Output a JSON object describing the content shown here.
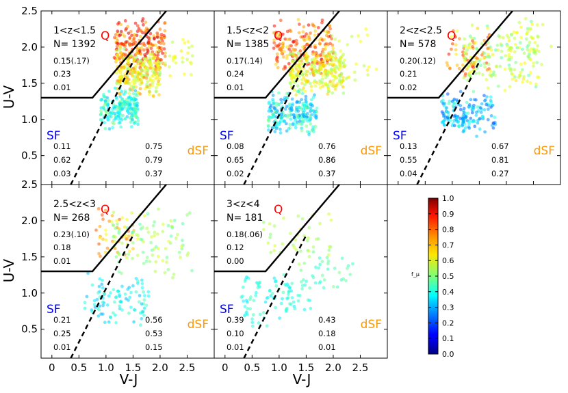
{
  "chart_data": {
    "type": "scatter",
    "xlabel": "V-J",
    "ylabel": "U-V",
    "xlim": [
      -0.2,
      3.0
    ],
    "ylim": [
      0.1,
      2.5
    ],
    "x_ticks": [
      "0",
      "0.5",
      "1.0",
      "1.5",
      "2.0",
      "2.5"
    ],
    "x_tick_values": [
      0,
      0.5,
      1.0,
      1.5,
      2.0,
      2.5
    ],
    "y_ticks": [
      "0.5",
      "1.0",
      "1.5",
      "2.0",
      "2.5"
    ],
    "y_tick_values": [
      0.5,
      1.0,
      1.5,
      2.0,
      2.5
    ],
    "region_labels": {
      "quiescent": "Q",
      "star_forming": "SF",
      "dusty_star_forming": "dSF"
    },
    "selection_boundary": {
      "horizontal": {
        "uv": 1.3,
        "vj_max": 0.75
      },
      "diagonal": {
        "slope": 0.88,
        "intercept": 0.64
      },
      "dashed": {
        "vj_start": 0.35,
        "uv_start": 0.1,
        "vj_end": 1.5,
        "uv_end": 1.8
      }
    },
    "colorbar": {
      "label": "f_μ",
      "ticks": [
        "0.0",
        "0.1",
        "0.2",
        "0.3",
        "0.4",
        "0.5",
        "0.6",
        "0.7",
        "0.8",
        "0.9",
        "1.0"
      ],
      "tick_values": [
        0.0,
        0.1,
        0.2,
        0.3,
        0.4,
        0.5,
        0.6,
        0.7,
        0.8,
        0.9,
        1.0
      ],
      "range": [
        0.0,
        1.0
      ],
      "colormap": "jet"
    },
    "panels": [
      {
        "z_label": "1<z<1.5",
        "n_label": "N= 1392",
        "n": 1392,
        "q_stats": [
          "0.15(.17)",
          "0.23",
          "0.01"
        ],
        "sf_stats": [
          "0.11",
          "0.62",
          "0.03"
        ],
        "dsf_stats": [
          "0.75",
          "0.79",
          "0.37"
        ],
        "points_rendered": 700,
        "seed": 11,
        "clusters": [
          {
            "vj": [
              1.15,
              2.1
            ],
            "uv": [
              1.6,
              2.4
            ],
            "f": [
              0.65,
              0.95
            ],
            "frac": 0.3
          },
          {
            "vj": [
              1.2,
              2.0
            ],
            "uv": [
              1.3,
              2.0
            ],
            "f": [
              0.5,
              0.75
            ],
            "frac": 0.35
          },
          {
            "vj": [
              0.9,
              1.6
            ],
            "uv": [
              0.85,
              1.45
            ],
            "f": [
              0.3,
              0.5
            ],
            "frac": 0.3
          },
          {
            "vj": [
              1.8,
              2.6
            ],
            "uv": [
              1.5,
              2.2
            ],
            "f": [
              0.55,
              0.65
            ],
            "frac": 0.05
          }
        ]
      },
      {
        "z_label": "1.5<z<2",
        "n_label": "N= 1385",
        "n": 1385,
        "q_stats": [
          "0.17(.14)",
          "0.24",
          "0.01"
        ],
        "sf_stats": [
          "0.08",
          "0.65",
          "0.02"
        ],
        "dsf_stats": [
          "0.76",
          "0.86",
          "0.37"
        ],
        "points_rendered": 700,
        "seed": 23,
        "clusters": [
          {
            "vj": [
              0.9,
              2.0
            ],
            "uv": [
              1.6,
              2.4
            ],
            "f": [
              0.65,
              0.9
            ],
            "frac": 0.28
          },
          {
            "vj": [
              1.2,
              2.2
            ],
            "uv": [
              1.3,
              2.0
            ],
            "f": [
              0.5,
              0.7
            ],
            "frac": 0.35
          },
          {
            "vj": [
              0.8,
              1.7
            ],
            "uv": [
              0.75,
              1.4
            ],
            "f": [
              0.25,
              0.5
            ],
            "frac": 0.32
          },
          {
            "vj": [
              1.8,
              2.8
            ],
            "uv": [
              1.4,
              2.3
            ],
            "f": [
              0.55,
              0.65
            ],
            "frac": 0.05
          }
        ]
      },
      {
        "z_label": "2<z<2.5",
        "n_label": "N= 578",
        "n": 578,
        "q_stats": [
          "0.20(.12)",
          "0.21",
          "0.02"
        ],
        "sf_stats": [
          "0.13",
          "0.55",
          "0.04"
        ],
        "dsf_stats": [
          "0.67",
          "0.81",
          "0.27"
        ],
        "points_rendered": 420,
        "seed": 37,
        "clusters": [
          {
            "vj": [
              0.9,
              1.7
            ],
            "uv": [
              1.55,
              2.3
            ],
            "f": [
              0.6,
              0.85
            ],
            "frac": 0.15
          },
          {
            "vj": [
              1.2,
              2.6
            ],
            "uv": [
              1.3,
              2.4
            ],
            "f": [
              0.45,
              0.65
            ],
            "frac": 0.4
          },
          {
            "vj": [
              0.8,
              1.8
            ],
            "uv": [
              0.75,
              1.4
            ],
            "f": [
              0.2,
              0.45
            ],
            "frac": 0.4
          },
          {
            "vj": [
              1.9,
              2.9
            ],
            "uv": [
              1.7,
              2.4
            ],
            "f": [
              0.55,
              0.6
            ],
            "frac": 0.05
          }
        ]
      },
      {
        "z_label": "2.5<z<3",
        "n_label": "N= 268",
        "n": 268,
        "q_stats": [
          "0.23(.10)",
          "0.18",
          "0.01"
        ],
        "sf_stats": [
          "0.21",
          "0.25",
          "0.01"
        ],
        "dsf_stats": [
          "0.56",
          "0.53",
          "0.15"
        ],
        "points_rendered": 240,
        "seed": 53,
        "clusters": [
          {
            "vj": [
              0.8,
              1.6
            ],
            "uv": [
              1.4,
              2.3
            ],
            "f": [
              0.6,
              0.8
            ],
            "frac": 0.2
          },
          {
            "vj": [
              1.1,
              2.6
            ],
            "uv": [
              1.2,
              2.2
            ],
            "f": [
              0.45,
              0.6
            ],
            "frac": 0.4
          },
          {
            "vj": [
              0.6,
              1.8
            ],
            "uv": [
              0.5,
              1.3
            ],
            "f": [
              0.3,
              0.45
            ],
            "frac": 0.4
          }
        ]
      },
      {
        "z_label": "3<z<4",
        "n_label": "N= 181",
        "n": 181,
        "q_stats": [
          "0.18(.06)",
          "0.12",
          "0.00"
        ],
        "sf_stats": [
          "0.39",
          "0.10",
          "0.01"
        ],
        "dsf_stats": [
          "0.43",
          "0.18",
          "0.01"
        ],
        "points_rendered": 170,
        "seed": 71,
        "clusters": [
          {
            "vj": [
              0.7,
              2.0
            ],
            "uv": [
              1.3,
              2.2
            ],
            "f": [
              0.5,
              0.6
            ],
            "frac": 0.25
          },
          {
            "vj": [
              0.3,
              1.6
            ],
            "uv": [
              0.5,
              1.3
            ],
            "f": [
              0.35,
              0.45
            ],
            "frac": 0.55
          },
          {
            "vj": [
              1.4,
              2.4
            ],
            "uv": [
              0.9,
              1.6
            ],
            "f": [
              0.4,
              0.5
            ],
            "frac": 0.2
          }
        ]
      }
    ]
  }
}
